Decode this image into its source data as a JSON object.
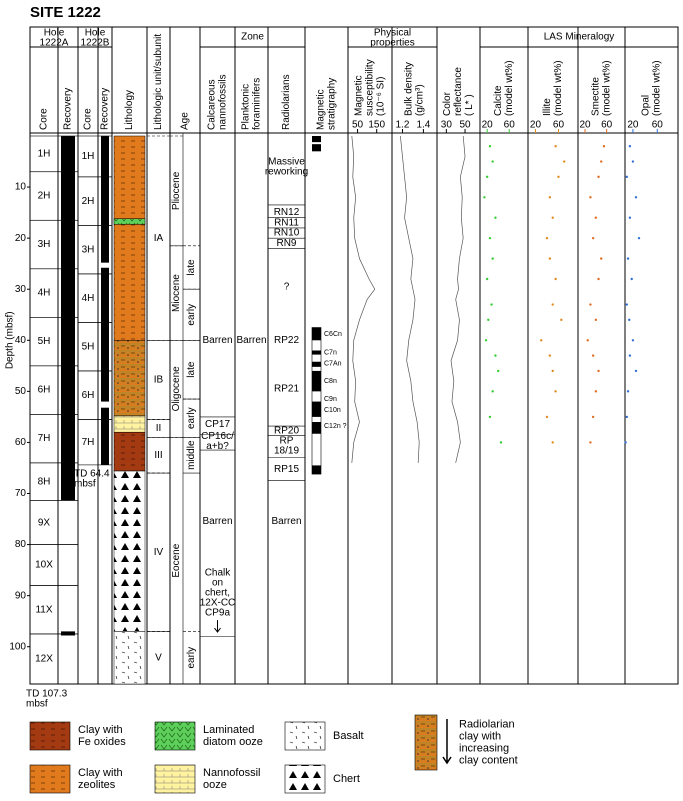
{
  "title": "SITE 1222",
  "headers": {
    "hole_a": [
      "Hole",
      "1222A"
    ],
    "hole_b": [
      "Hole",
      "1222B"
    ],
    "core": "Core",
    "recovery": "Recovery",
    "lithology": "Lithology",
    "unit": "Lithologic unit/subunit",
    "age": "Age",
    "zone": "Zone",
    "nanno": [
      "Calcareous",
      "nannofossils"
    ],
    "foram": [
      "Planktonic",
      "foraminifers"
    ],
    "rad": "Radiolarians",
    "mag": [
      "Magnetic",
      "stratigraphy"
    ],
    "phys": [
      "Physical",
      "properties"
    ],
    "ms": [
      "Magnetic",
      "susceptibility",
      "(10⁻⁶ SI)"
    ],
    "bd": [
      "Bulk density",
      "(g/cm³)"
    ],
    "cr": [
      "Color",
      "reflectance",
      "( L* )"
    ],
    "las": "LAS Mineralogy",
    "calcite": [
      "Calcite",
      "(model wt%)"
    ],
    "illite": [
      "Illite",
      "(model wt%)"
    ],
    "smectite": [
      "Smectite",
      "(model wt%)"
    ],
    "opal": [
      "Opal",
      "(model wt%)"
    ]
  },
  "depth_axis": {
    "label": "Depth (mbsf)",
    "ylim": [
      0,
      107.3
    ],
    "yticks": [
      10,
      20,
      30,
      40,
      50,
      60,
      70,
      80,
      90,
      100
    ]
  },
  "cores_a": [
    {
      "label": "1H",
      "top": 0,
      "bottom": 7
    },
    {
      "label": "2H",
      "top": 7,
      "bottom": 16.5
    },
    {
      "label": "3H",
      "top": 16.5,
      "bottom": 26
    },
    {
      "label": "4H",
      "top": 26,
      "bottom": 35.5
    },
    {
      "label": "5H",
      "top": 35.5,
      "bottom": 45
    },
    {
      "label": "6H",
      "top": 45,
      "bottom": 54.5
    },
    {
      "label": "7H",
      "top": 54.5,
      "bottom": 64
    },
    {
      "label": "8H",
      "top": 64,
      "bottom": 71.4
    },
    {
      "label": "9X",
      "top": 71.4,
      "bottom": 80
    },
    {
      "label": "10X",
      "top": 80,
      "bottom": 88
    },
    {
      "label": "11X",
      "top": 88,
      "bottom": 97.5
    },
    {
      "label": "12X",
      "top": 97.5,
      "bottom": 107.3
    }
  ],
  "recovery_a": [
    [
      0,
      71.3
    ],
    [
      97,
      97.8
    ]
  ],
  "td_a": [
    "TD 107.3",
    "mbsf"
  ],
  "cores_b": [
    {
      "label": "1H",
      "top": 0,
      "bottom": 8
    },
    {
      "label": "2H",
      "top": 8,
      "bottom": 17.5
    },
    {
      "label": "3H",
      "top": 17.5,
      "bottom": 27
    },
    {
      "label": "4H",
      "top": 27,
      "bottom": 36.5
    },
    {
      "label": "5H",
      "top": 36.5,
      "bottom": 46
    },
    {
      "label": "6H",
      "top": 46,
      "bottom": 55.5
    },
    {
      "label": "7H",
      "top": 55.5,
      "bottom": 64.4
    }
  ],
  "recovery_b": [
    [
      0,
      24.8
    ],
    [
      25.8,
      52
    ],
    [
      53.2,
      64.4
    ]
  ],
  "td_b": [
    "TD 64.4",
    "mbsf"
  ],
  "lithology": [
    {
      "type": "zeolite",
      "top": 0,
      "bottom": 40
    },
    {
      "type": "diatom",
      "top": 16.2,
      "bottom": 17.3
    },
    {
      "type": "radiolarian",
      "top": 40,
      "bottom": 54.8
    },
    {
      "type": "nanno",
      "top": 54.8,
      "bottom": 58
    },
    {
      "type": "feoxide",
      "top": 58,
      "bottom": 65.6
    },
    {
      "type": "chert",
      "top": 65.6,
      "bottom": 97
    },
    {
      "type": "basalt",
      "top": 97,
      "bottom": 107.3
    }
  ],
  "units": [
    {
      "label": "IA",
      "top": 0,
      "bottom": 40
    },
    {
      "label": "IB",
      "top": 40,
      "bottom": 55.5
    },
    {
      "label": "II",
      "top": 55.5,
      "bottom": 59
    },
    {
      "label": "III",
      "top": 59,
      "bottom": 66
    },
    {
      "label": "IV",
      "top": 66,
      "bottom": 97
    },
    {
      "label": "V",
      "top": 97,
      "bottom": 107.3
    }
  ],
  "epochs": [
    {
      "label": "Pliocene",
      "top": 0,
      "bottom": 21.5
    },
    {
      "label": "Miocene",
      "top": 21.5,
      "bottom": 40
    },
    {
      "label": "Oligocene",
      "top": 40,
      "bottom": 59
    },
    {
      "label": "Eocene",
      "top": 59,
      "bottom": 107.3
    }
  ],
  "subepochs": [
    {
      "label": "late",
      "top": 21.5,
      "bottom": 30
    },
    {
      "label": "early",
      "top": 30,
      "bottom": 40
    },
    {
      "label": "late",
      "top": 40,
      "bottom": 51.5
    },
    {
      "label": "early",
      "top": 51.5,
      "bottom": 59
    },
    {
      "label": "middle",
      "top": 59,
      "bottom": 66
    },
    {
      "label": "early",
      "top": 97,
      "bottom": 107.3
    }
  ],
  "nanno_zones": [
    {
      "lines": [
        "Barren"
      ],
      "depth": 40
    },
    {
      "lines": [
        "CP17"
      ],
      "depth": 56.5
    },
    {
      "lines": [
        "CP16c/",
        "a+b?"
      ],
      "depth": 59.8
    },
    {
      "lines": [
        "Barren"
      ],
      "depth": 75.5
    },
    {
      "lines": [
        "Chalk",
        "on",
        "chert,",
        "12X-CC",
        "CP9a"
      ],
      "depth": 89.5
    }
  ],
  "nanno_boundaries": [
    55,
    58.4,
    61.5,
    98
  ],
  "foram_zones": [
    {
      "lines": [
        "Barren"
      ],
      "depth": 40
    }
  ],
  "rad_zones": [
    {
      "lines": [
        "Massive",
        "reworking"
      ],
      "depth": 6
    },
    {
      "lines": [
        "RN12"
      ],
      "depth": 15
    },
    {
      "lines": [
        "RN11"
      ],
      "depth": 17
    },
    {
      "lines": [
        "RN10"
      ],
      "depth": 19
    },
    {
      "lines": [
        "RN9"
      ],
      "depth": 21
    },
    {
      "lines": [
        "?"
      ],
      "depth": 29.5
    },
    {
      "lines": [
        "RP22"
      ],
      "depth": 40
    },
    {
      "lines": [
        "RP21"
      ],
      "depth": 49.5
    },
    {
      "lines": [
        "RP20"
      ],
      "depth": 57.7
    },
    {
      "lines": [
        "RP",
        "18/19"
      ],
      "depth": 60.7
    },
    {
      "lines": [
        "RP15"
      ],
      "depth": 65.3
    },
    {
      "lines": [
        "Barren"
      ],
      "depth": 75.5
    }
  ],
  "rad_boundaries": [
    13.5,
    16,
    18,
    20,
    22,
    56.8,
    58.6,
    63,
    67.5
  ],
  "mag_normal": [
    [
      0,
      1.2
    ],
    [
      1.6,
      3
    ],
    [
      37.5,
      40
    ],
    [
      42,
      42.8
    ],
    [
      44.2,
      45.2
    ],
    [
      46,
      50
    ],
    [
      52,
      55
    ],
    [
      56,
      58.3
    ],
    [
      64.5,
      66.2
    ]
  ],
  "mag_labels": [
    {
      "label": "C6Cn",
      "depth": 38.8
    },
    {
      "label": "C7n",
      "depth": 42.4
    },
    {
      "label": "C7An",
      "depth": 44.6
    },
    {
      "label": "C8n",
      "depth": 48
    },
    {
      "label": "C9n",
      "depth": 51.5
    },
    {
      "label": "C10n",
      "depth": 53.7
    },
    {
      "label": "C12n ?",
      "depth": 56.8
    }
  ],
  "physical": {
    "ms": {
      "xlim": [
        0,
        230
      ],
      "xticks": [
        50,
        150
      ],
      "depth": [
        0,
        4,
        8,
        12,
        16,
        20,
        24,
        28,
        30,
        32,
        36,
        40,
        44,
        48,
        52,
        56,
        60,
        64
      ],
      "values": [
        20,
        30,
        25,
        40,
        30,
        35,
        60,
        110,
        140,
        100,
        60,
        30,
        25,
        40,
        35,
        60,
        30,
        20
      ],
      "color": "#555555"
    },
    "bd": {
      "xlim": [
        1.1,
        1.53
      ],
      "xticks": [
        1.2,
        1.4
      ],
      "depth": [
        0,
        4,
        8,
        12,
        16,
        20,
        24,
        28,
        30,
        32,
        36,
        40,
        44,
        48,
        52,
        56,
        60,
        64
      ],
      "values": [
        1.18,
        1.2,
        1.22,
        1.24,
        1.22,
        1.26,
        1.3,
        1.28,
        1.3,
        1.32,
        1.3,
        1.26,
        1.24,
        1.28,
        1.3,
        1.34,
        1.36,
        1.35
      ],
      "color": "#555555"
    },
    "cr": {
      "xlim": [
        20,
        66
      ],
      "xticks": [
        30,
        50
      ],
      "depth": [
        0,
        4,
        8,
        12,
        16,
        20,
        24,
        28,
        30,
        32,
        36,
        40,
        44,
        48,
        52,
        56,
        60,
        64
      ],
      "values": [
        48,
        50,
        45,
        47,
        46,
        48,
        44,
        42,
        43,
        40,
        44,
        42,
        35,
        38,
        36,
        42,
        45,
        40
      ],
      "color": "#555555"
    }
  },
  "minerals": {
    "calcite": {
      "xlim": [
        7,
        94
      ],
      "xticks": [
        20,
        60
      ],
      "color": "#33cc33",
      "depth": [
        2,
        5,
        8,
        12,
        16,
        20,
        24,
        28,
        33,
        36,
        40,
        43,
        46,
        50,
        55,
        60
      ],
      "values": [
        25,
        30,
        20,
        15,
        35,
        25,
        30,
        20,
        28,
        22,
        18,
        35,
        40,
        30,
        25,
        45
      ]
    },
    "illite": {
      "xlim": [
        7,
        94
      ],
      "xticks": [
        20,
        60
      ],
      "color": "#e08a1e",
      "depth": [
        2,
        5,
        8,
        12,
        16,
        20,
        24,
        28,
        33,
        36,
        40,
        43,
        46,
        50,
        55,
        60
      ],
      "values": [
        55,
        70,
        60,
        45,
        50,
        40,
        45,
        55,
        50,
        65,
        30,
        45,
        50,
        55,
        40,
        50
      ]
    },
    "smectite": {
      "xlim": [
        7,
        94
      ],
      "xticks": [
        20,
        60
      ],
      "color": "#e06a1e",
      "depth": [
        2,
        5,
        8,
        12,
        16,
        20,
        24,
        28,
        33,
        36,
        40,
        43,
        46,
        50,
        55,
        60
      ],
      "values": [
        55,
        50,
        45,
        30,
        40,
        35,
        50,
        45,
        30,
        40,
        25,
        35,
        45,
        40,
        35,
        30
      ]
    },
    "opal": {
      "xlim": [
        7,
        94
      ],
      "xticks": [
        20,
        60
      ],
      "color": "#2f6fd6",
      "depth": [
        2,
        5,
        8,
        12,
        16,
        20,
        24,
        28,
        33,
        36,
        40,
        43,
        46,
        50,
        55,
        60
      ],
      "values": [
        15,
        20,
        10,
        25,
        15,
        30,
        12,
        18,
        10,
        14,
        20,
        15,
        25,
        12,
        10,
        8
      ]
    }
  },
  "legend": [
    {
      "type": "feoxide",
      "lines": [
        "Clay with",
        "Fe oxides"
      ]
    },
    {
      "type": "zeolite",
      "lines": [
        "Clay with",
        "zeolites"
      ]
    },
    {
      "type": "diatom",
      "lines": [
        "Laminated",
        "diatom ooze"
      ]
    },
    {
      "type": "nanno",
      "lines": [
        "Nannofossil",
        "ooze"
      ]
    },
    {
      "type": "basalt",
      "lines": [
        "Basalt"
      ]
    },
    {
      "type": "chert",
      "lines": [
        "Chert"
      ]
    },
    {
      "type": "radiolarian",
      "lines": [
        "Radiolarian",
        "clay with",
        "increasing",
        "clay content"
      ]
    }
  ]
}
